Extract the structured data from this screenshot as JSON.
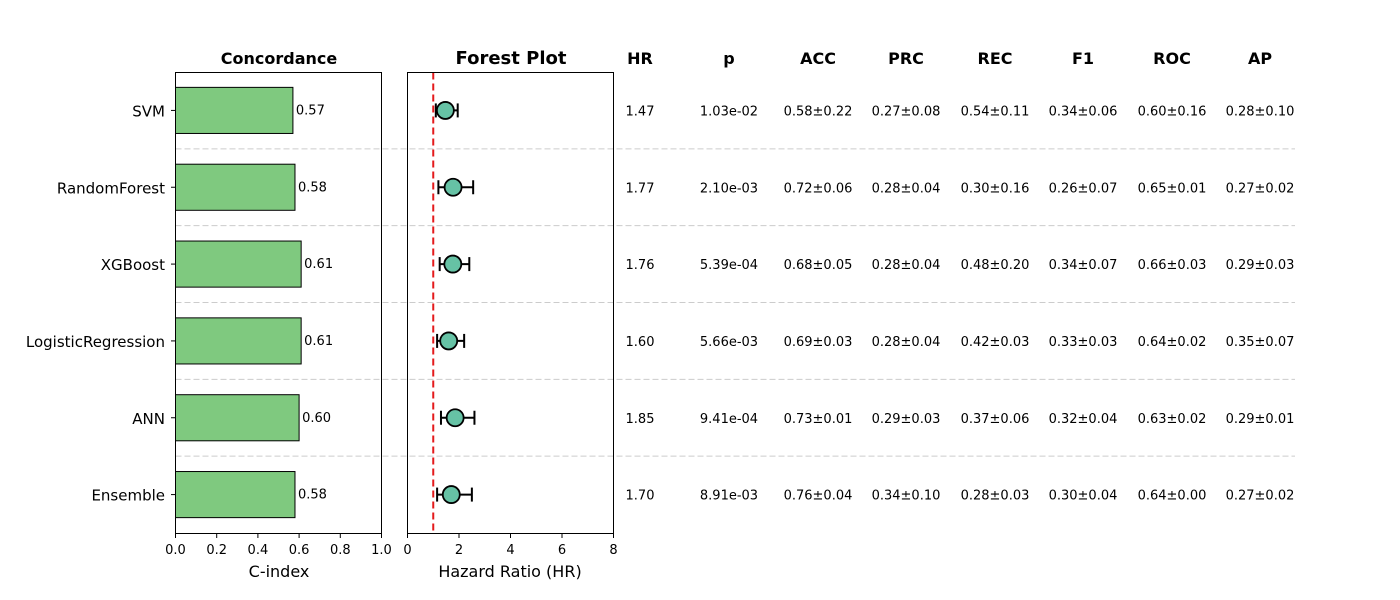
{
  "chart_data": [
    {
      "type": "bar",
      "orientation": "horizontal",
      "title": "Concordance",
      "xlabel": "C-index",
      "xlim": [
        0.0,
        1.0
      ],
      "xticks": [
        "0.0",
        "0.2",
        "0.4",
        "0.6",
        "0.8",
        "1.0"
      ],
      "categories": [
        "SVM",
        "RandomForest",
        "XGBoost",
        "LogisticRegression",
        "ANN",
        "Ensemble"
      ],
      "values": [
        0.57,
        0.58,
        0.61,
        0.61,
        0.6,
        0.58
      ],
      "value_labels": [
        "0.57",
        "0.58",
        "0.61",
        "0.61",
        "0.60",
        "0.58"
      ],
      "bar_color": "#7fc97f"
    },
    {
      "type": "scatter",
      "title": "Forest Plot",
      "xlabel": "Hazard Ratio (HR)",
      "xlim": [
        0,
        8
      ],
      "xticks": [
        "0",
        "2",
        "4",
        "6",
        "8"
      ],
      "categories": [
        "SVM",
        "RandomForest",
        "XGBoost",
        "LogisticRegression",
        "ANN",
        "Ensemble"
      ],
      "hr": [
        1.47,
        1.77,
        1.76,
        1.6,
        1.85,
        1.7
      ],
      "ci_low": [
        1.1,
        1.2,
        1.25,
        1.15,
        1.3,
        1.15
      ],
      "ci_high": [
        1.95,
        2.55,
        2.4,
        2.2,
        2.6,
        2.5
      ],
      "reference_line": 1,
      "reference_color": "#e41a1c",
      "point_color": "#66c2a5"
    },
    {
      "type": "table",
      "columns": [
        "HR",
        "p",
        "ACC",
        "PRC",
        "REC",
        "F1",
        "ROC",
        "AP"
      ],
      "rows": [
        [
          "1.47",
          "1.03e-02",
          "0.58±0.22",
          "0.27±0.08",
          "0.54±0.11",
          "0.34±0.06",
          "0.60±0.16",
          "0.28±0.10"
        ],
        [
          "1.77",
          "2.10e-03",
          "0.72±0.06",
          "0.28±0.04",
          "0.30±0.16",
          "0.26±0.07",
          "0.65±0.01",
          "0.27±0.02"
        ],
        [
          "1.76",
          "5.39e-04",
          "0.68±0.05",
          "0.28±0.04",
          "0.48±0.20",
          "0.34±0.07",
          "0.66±0.03",
          "0.29±0.03"
        ],
        [
          "1.60",
          "5.66e-03",
          "0.69±0.03",
          "0.28±0.04",
          "0.42±0.03",
          "0.33±0.03",
          "0.64±0.02",
          "0.35±0.07"
        ],
        [
          "1.85",
          "9.41e-04",
          "0.73±0.01",
          "0.29±0.03",
          "0.37±0.06",
          "0.32±0.04",
          "0.63±0.02",
          "0.29±0.01"
        ],
        [
          "1.70",
          "8.91e-03",
          "0.76±0.04",
          "0.34±0.10",
          "0.28±0.03",
          "0.30±0.04",
          "0.64±0.00",
          "0.27±0.02"
        ]
      ]
    }
  ]
}
